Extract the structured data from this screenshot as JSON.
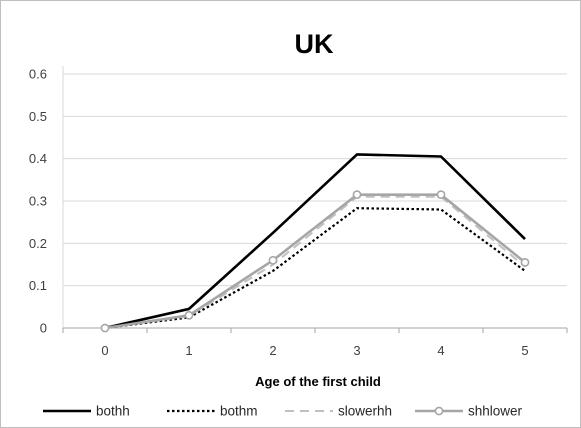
{
  "chart_data": {
    "type": "line",
    "title": "UK",
    "xlabel": "Age of the first child",
    "ylabel": "",
    "x": [
      0,
      1,
      2,
      3,
      4,
      5
    ],
    "x_tick_labels": [
      "0",
      "1",
      "2",
      "3",
      "4",
      "5"
    ],
    "ylim": [
      0,
      0.6
    ],
    "y_ticks": [
      0,
      0.1,
      0.2,
      0.3,
      0.4,
      0.5,
      0.6
    ],
    "y_tick_labels": [
      "0",
      "0.1",
      "0.2",
      "0.3",
      "0.4",
      "0.5",
      "0.6"
    ],
    "grid": true,
    "legend_position": "bottom",
    "series": [
      {
        "name": "bothh",
        "values": [
          0.0,
          0.045,
          0.225,
          0.41,
          0.405,
          0.21
        ],
        "color": "#000000",
        "style": "solid",
        "marker": "none"
      },
      {
        "name": "bothm",
        "values": [
          0.0,
          0.025,
          0.135,
          0.283,
          0.28,
          0.135
        ],
        "color": "#000000",
        "style": "dotted",
        "marker": "none"
      },
      {
        "name": "slowerhh",
        "values": [
          0.0,
          0.028,
          0.15,
          0.31,
          0.31,
          0.145
        ],
        "color": "#c0c0c0",
        "style": "dashed",
        "marker": "none"
      },
      {
        "name": "shhlower",
        "values": [
          0.0,
          0.03,
          0.16,
          0.315,
          0.315,
          0.155
        ],
        "color": "#a6a6a6",
        "style": "solid",
        "marker": "circle"
      }
    ]
  }
}
